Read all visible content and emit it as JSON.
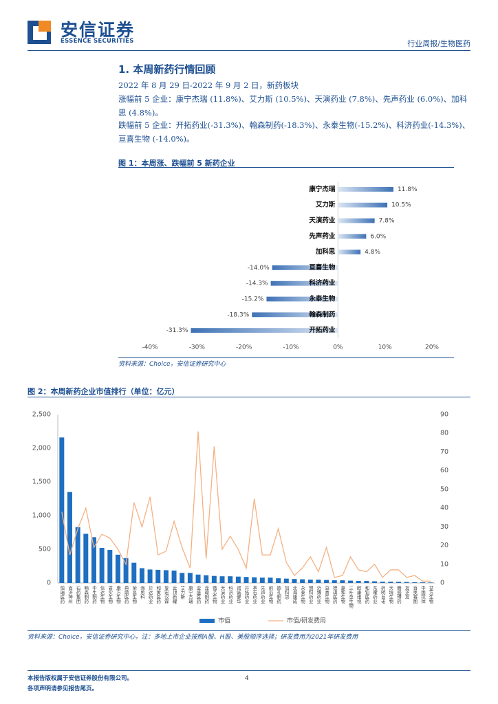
{
  "header": {
    "brand": "安信证券",
    "brand_en": "ESSENCE SECURITIES",
    "doc_type": "行业周报/生物医药"
  },
  "section": {
    "title": "1. 本周新药行情回顾",
    "paragraphs": [
      "2022 年 8 月 29 日-2022 年 9 月 2 日，新药板块",
      "涨幅前 5 企业：康宁杰瑞 (11.8%)、艾力斯 (10.5%)、天演药业 (7.8%)、先声药业 (6.0%)、加科思 (4.8%)。",
      "跌幅前 5 企业：开拓药业(-31.3%)、翰森制药(-18.3%)、永泰生物(-15.2%)、科济药业(-14.3%)、亘喜生物 (-14.0%)。"
    ]
  },
  "figures": [
    {
      "title": "图 1：本周涨、跌幅前 5 新药企业",
      "source": "资料来源：Choice，安信证券研究中心"
    },
    {
      "title": "图 2：本周新药企业市值排行（单位：亿元）",
      "source": "资料来源：Choice，安信证券研究中心，注：多地上市企业按照A股、H股、美股顺序选择；研发费用为2021年研发费用"
    }
  ],
  "footer": {
    "copyright": "本报告版权属于安信证券股份有限公司。",
    "notice": "各项声明请参见报告尾页。",
    "page": "4"
  },
  "chart_data": [
    {
      "type": "bar",
      "orientation": "horizontal",
      "color": "#3f72b5",
      "categories": [
        "康宁杰瑞",
        "艾力斯",
        "天演药业",
        "先声药业",
        "加科思",
        "亘喜生物",
        "科济药业",
        "永泰生物",
        "翰森制药",
        "开拓药业"
      ],
      "values": [
        11.8,
        10.5,
        7.8,
        6.0,
        4.8,
        -14.0,
        -14.3,
        -15.2,
        -18.3,
        -31.3
      ],
      "value_labels": [
        "11.8%",
        "10.5%",
        "7.8%",
        "6.0%",
        "4.8%",
        "-14.0%",
        "-14.3%",
        "-15.2%",
        "-18.3%",
        "-31.3%"
      ],
      "xlim": [
        -40,
        20
      ],
      "xticks": [
        {
          "value": -40,
          "label": "-40%"
        },
        {
          "value": -30,
          "label": "-30%"
        },
        {
          "value": -20,
          "label": "-20%"
        },
        {
          "value": -10,
          "label": "-10%"
        },
        {
          "value": 0,
          "label": "0%"
        },
        {
          "value": 10,
          "label": "10%"
        },
        {
          "value": 20,
          "label": "20%"
        }
      ],
      "grid": false
    },
    {
      "type": "bar_line",
      "categories": [
        "恒瑞医药",
        "百济神州",
        "石药集团",
        "翰森制药",
        "中生制药",
        "信达生物",
        "君实生物",
        "康方生物",
        "再鼎医药",
        "荣昌生物",
        "海思科",
        "贝达药业",
        "和黄医药",
        "复宏汉霖",
        "云顶新耀",
        "艾力斯",
        "康宁杰瑞",
        "亚盛医药",
        "泽璟制药",
        "微芯生物",
        "天演药业",
        "科济药业",
        "诺诚健华",
        "开拓药业",
        "基石药业",
        "先声药业",
        "前沿生物",
        "歌礼制药",
        "加科思",
        "北海康成",
        "永泰生物",
        "盟科药业",
        "迈博药业",
        "亘喜生物",
        "德琪医药",
        "嘉和生物",
        "三叶草生物",
        "欧康维视",
        "和铂医药",
        "东曜药业",
        "药明巨诺",
        "天境生物",
        "腾盛博药",
        "友芝友",
        "百奥赛图",
        "中国抗体",
        "益方生物"
      ],
      "series": [
        {
          "name": "市值",
          "color": "#1f6fc1",
          "axis": "y",
          "values": [
            2160,
            1350,
            830,
            730,
            680,
            520,
            490,
            420,
            370,
            300,
            220,
            200,
            195,
            190,
            185,
            150,
            150,
            125,
            115,
            105,
            100,
            100,
            95,
            90,
            85,
            80,
            80,
            70,
            65,
            60,
            55,
            50,
            50,
            45,
            40,
            40,
            35,
            30,
            30,
            25,
            20,
            20,
            18,
            15,
            12,
            10,
            8
          ]
        },
        {
          "name": "市值/研发费用",
          "color": "#f4b183",
          "axis": "y2",
          "values": [
            38,
            15,
            29,
            40,
            19,
            26,
            24,
            18,
            10,
            43,
            30,
            46,
            15,
            17,
            33,
            19,
            8,
            81,
            13,
            73,
            18,
            25,
            18,
            8,
            45,
            15,
            15,
            29,
            11,
            4,
            8,
            14,
            6,
            19,
            3,
            4,
            14,
            7,
            6,
            10,
            3,
            7,
            7,
            3,
            4,
            1,
            1
          ]
        }
      ],
      "ylim": [
        0,
        2500
      ],
      "yticks": [
        0,
        500,
        {
          "value": 1000,
          "label": "1,000"
        },
        {
          "value": 1500,
          "label": "1,500"
        },
        {
          "value": 2000,
          "label": "2,000"
        },
        {
          "value": 2500,
          "label": "2,500"
        }
      ],
      "y2lim": [
        0,
        90
      ],
      "y2ticks": [
        0,
        10,
        20,
        30,
        40,
        50,
        60,
        70,
        80,
        90
      ],
      "legend": "bottom",
      "grid": false
    }
  ]
}
